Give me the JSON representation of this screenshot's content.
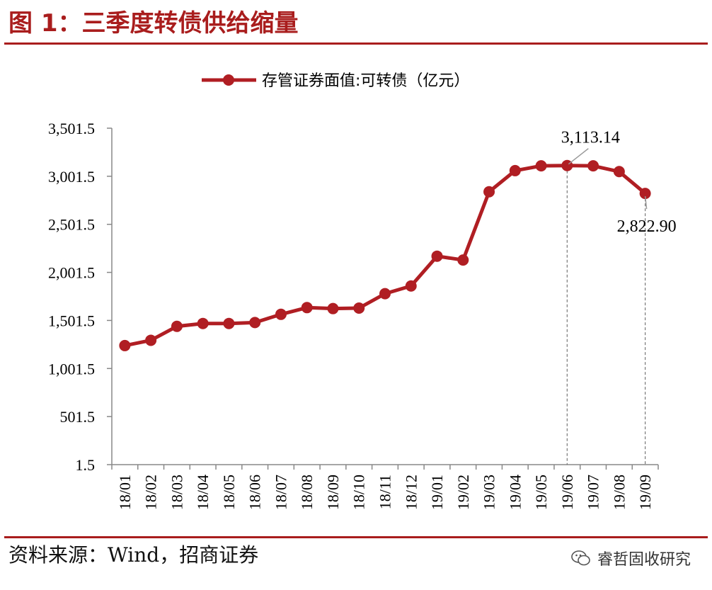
{
  "figure": {
    "title": "图  1：三季度转债供给缩量",
    "source": "资料来源：Wind，招商证券",
    "watermark": "睿哲固收研究"
  },
  "colors": {
    "accent": "#a91d1d",
    "series": "#b01e23",
    "axis": "#888888",
    "dash": "#777777"
  },
  "chart_data": {
    "type": "line",
    "legend": "存管证券面值:可转债（亿元）",
    "legend_position": "top-center",
    "categories": [
      "18/01",
      "18/02",
      "18/03",
      "18/04",
      "18/05",
      "18/06",
      "18/07",
      "18/08",
      "18/09",
      "18/10",
      "18/11",
      "18/12",
      "19/01",
      "19/02",
      "19/03",
      "19/04",
      "19/05",
      "19/06",
      "19/07",
      "19/08",
      "19/09"
    ],
    "series": [
      {
        "name": "存管证券面值:可转债（亿元）",
        "values": [
          1240,
          1295,
          1440,
          1470,
          1470,
          1480,
          1565,
          1635,
          1625,
          1630,
          1780,
          1860,
          2170,
          2130,
          2840,
          3060,
          3110,
          3113.14,
          3110,
          3050,
          2822.9
        ]
      }
    ],
    "ylim": [
      1.5,
      3501.5
    ],
    "yticks": [
      "1.5",
      "501.5",
      "1,001.5",
      "1,501.5",
      "2,001.5",
      "2,501.5",
      "3,001.5",
      "3,501.5"
    ],
    "ytick_values": [
      1.5,
      501.5,
      1001.5,
      1501.5,
      2001.5,
      2501.5,
      3001.5,
      3501.5
    ],
    "annotations": [
      {
        "category": "19/06",
        "value": 3113.14,
        "text": "3,113.14"
      },
      {
        "category": "19/09",
        "value": 2822.9,
        "text": "2,822.90"
      }
    ],
    "grid": false
  }
}
